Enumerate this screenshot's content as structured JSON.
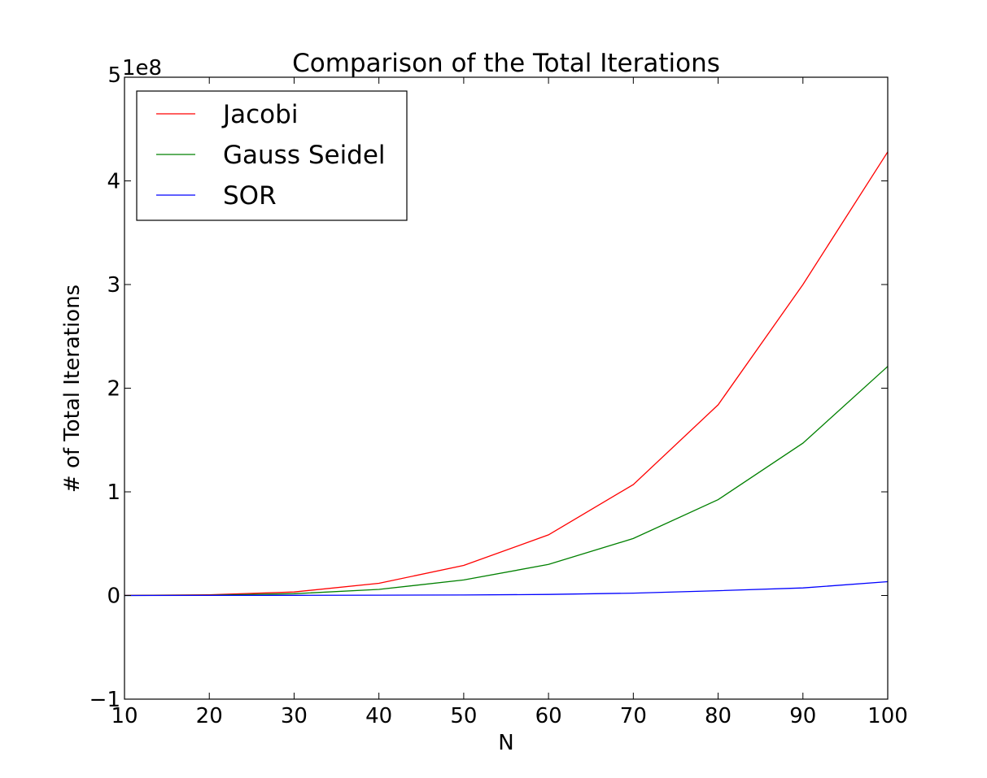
{
  "chart_data": {
    "type": "line",
    "title": "Comparison of the Total Iterations",
    "xlabel": "N",
    "ylabel": "# of Total Iterations",
    "y_scale_label": "1e8",
    "xlim": [
      10,
      100
    ],
    "ylim": [
      -100000000,
      500000000
    ],
    "x_ticks": [
      10,
      20,
      30,
      40,
      50,
      60,
      70,
      80,
      90,
      100
    ],
    "x_tick_labels": [
      "10",
      "20",
      "30",
      "40",
      "50",
      "60",
      "70",
      "80",
      "90",
      "100"
    ],
    "y_ticks": [
      -100000000,
      0,
      100000000,
      200000000,
      300000000,
      400000000,
      500000000
    ],
    "y_tick_labels": [
      "−1",
      "0",
      "1",
      "2",
      "3",
      "4",
      "5"
    ],
    "grid": false,
    "legend_position": "top-left",
    "x": [
      10,
      20,
      30,
      40,
      50,
      60,
      70,
      80,
      90,
      100
    ],
    "series": [
      {
        "name": "Jacobi",
        "color": "#ff0000",
        "values": [
          50000,
          700000,
          3400000,
          11800000,
          29000000,
          58500000,
          107000000,
          184000000,
          300000000,
          428000000
        ]
      },
      {
        "name": "Gauss Seidel",
        "color": "#008000",
        "values": [
          30000,
          350000,
          1700000,
          5900000,
          15000000,
          30000000,
          55000000,
          92500000,
          147000000,
          221000000
        ]
      },
      {
        "name": "SOR",
        "color": "#0000ff",
        "values": [
          0,
          50000,
          150000,
          300000,
          500000,
          1000000,
          2300000,
          4600000,
          7300000,
          13300000
        ]
      }
    ]
  }
}
